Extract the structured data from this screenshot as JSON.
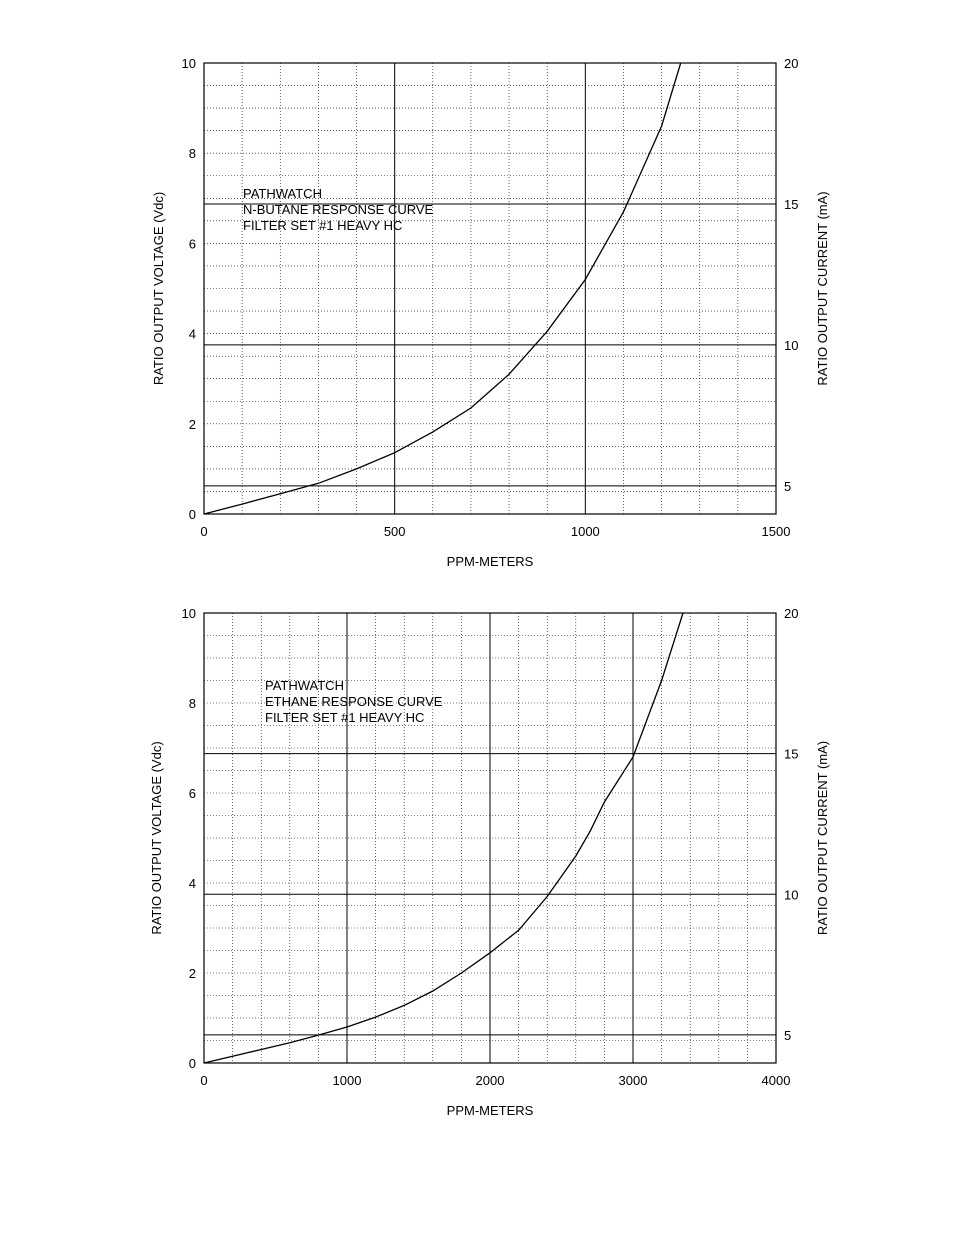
{
  "chart_data": [
    {
      "type": "line",
      "annotation": [
        "PATHWATCH",
        "N-BUTANE RESPONSE CURVE",
        "FILTER SET #1 HEAVY HC"
      ],
      "xlabel": "PPM-METERS",
      "ylabel": "RATIO OUTPUT VOLTAGE (Vdc)",
      "y2label": "RATIO OUTPUT CURRENT (mA)",
      "xlim": [
        0,
        1500
      ],
      "ylim": [
        0,
        10
      ],
      "y2lim": [
        4,
        20
      ],
      "xticks": [
        "0",
        "500",
        "1000",
        "1500"
      ],
      "xtick_values": [
        0,
        500,
        1000,
        1500
      ],
      "yticks": [
        "0",
        "2",
        "4",
        "6",
        "8",
        "10"
      ],
      "ytick_values": [
        0,
        2,
        4,
        6,
        8,
        10
      ],
      "y2ticks": [
        "5",
        "10",
        "15",
        "20"
      ],
      "y2tick_values": [
        5,
        10,
        15,
        20
      ],
      "grid": true,
      "series": [
        {
          "x": [
            0,
            100,
            200,
            300,
            400,
            500,
            600,
            700,
            800,
            900,
            1000,
            1100,
            1200,
            1250
          ],
          "y": [
            0.0,
            0.22,
            0.45,
            0.68,
            1.0,
            1.36,
            1.82,
            2.35,
            3.1,
            4.05,
            5.2,
            6.7,
            8.6,
            10.0
          ]
        }
      ]
    },
    {
      "type": "line",
      "annotation": [
        "PATHWATCH",
        "ETHANE RESPONSE CURVE",
        "FILTER SET #1 HEAVY HC"
      ],
      "xlabel": "PPM-METERS",
      "ylabel": "RATIO OUTPUT VOLTAGE (Vdc)",
      "y2label": "RATIO OUTPUT CURRENT (mA)",
      "xlim": [
        0,
        4000
      ],
      "ylim": [
        0,
        10
      ],
      "y2lim": [
        4,
        20
      ],
      "xticks": [
        "0",
        "1000",
        "2000",
        "3000",
        "4000"
      ],
      "xtick_values": [
        0,
        1000,
        2000,
        3000,
        4000
      ],
      "yticks": [
        "0",
        "2",
        "4",
        "6",
        "8",
        "10"
      ],
      "ytick_values": [
        0,
        2,
        4,
        6,
        8,
        10
      ],
      "y2ticks": [
        "5",
        "10",
        "15",
        "20"
      ],
      "y2tick_values": [
        5,
        10,
        15,
        20
      ],
      "grid": true,
      "series": [
        {
          "x": [
            0,
            200,
            400,
            600,
            800,
            1000,
            1200,
            1400,
            1600,
            1800,
            2000,
            2200,
            2400,
            2600,
            2700,
            2800,
            3000,
            3200,
            3350
          ],
          "y": [
            0.0,
            0.15,
            0.3,
            0.45,
            0.62,
            0.8,
            1.02,
            1.28,
            1.6,
            2.0,
            2.45,
            2.95,
            3.7,
            4.6,
            5.15,
            5.8,
            6.8,
            8.5,
            10.0
          ]
        }
      ]
    }
  ]
}
